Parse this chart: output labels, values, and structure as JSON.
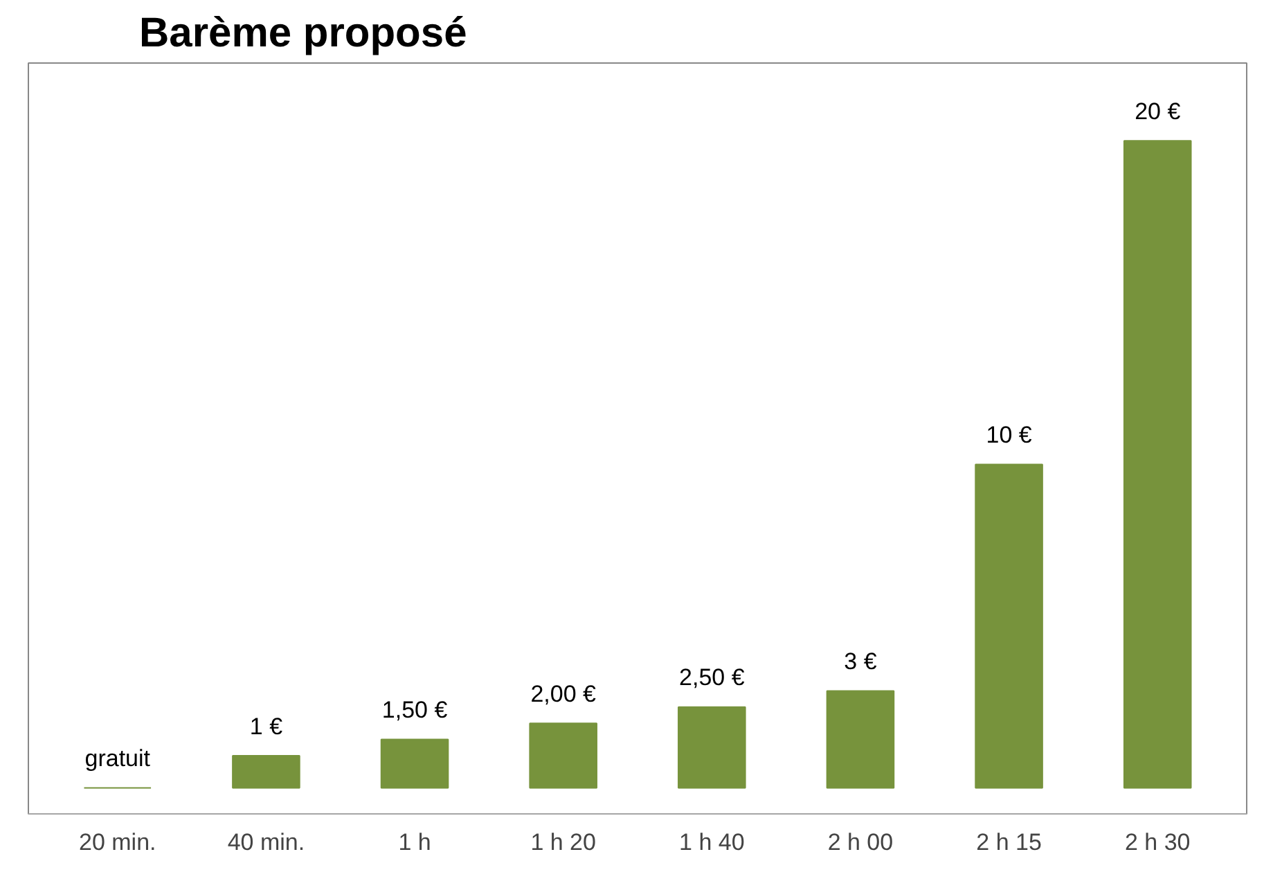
{
  "chart_data": {
    "type": "bar",
    "title": "Barème proposé",
    "categories": [
      "20 min.",
      "40 min.",
      "1 h",
      "1 h 20",
      "1 h 40",
      "2 h 00",
      "2 h 15",
      "2 h 30"
    ],
    "values": [
      0,
      1,
      1.5,
      2,
      2.5,
      3,
      10,
      20
    ],
    "value_labels": [
      "gratuit",
      "1 €",
      "1,50 €",
      "2,00 €",
      "2,50 €",
      "3 €",
      "10 €",
      "20 €"
    ],
    "color": "#77933c",
    "grid": false
  }
}
